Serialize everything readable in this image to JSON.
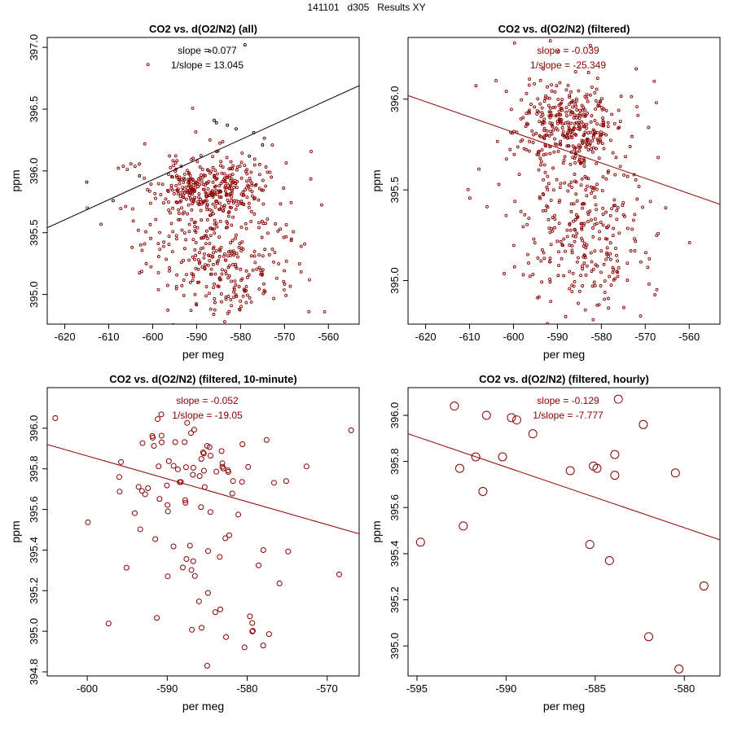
{
  "page_title": "141101   d305   Results XY",
  "colors": {
    "data": "#8b0000",
    "outlier": "#000000",
    "frame": "#000000",
    "text": "#000000"
  },
  "chart_data": [
    {
      "type": "scatter",
      "title": "CO2 vs. d(O2/N2) (all)",
      "xlabel": "per meg",
      "ylabel": "ppm",
      "xlim": [
        -624,
        -553
      ],
      "ylim": [
        394.76,
        397.08
      ],
      "xticks": [
        -620,
        -610,
        -600,
        -590,
        -580,
        -570,
        -560
      ],
      "yticks": [
        395.0,
        395.5,
        396.0,
        396.5,
        397.0
      ],
      "ytick_labels": [
        "395.0",
        "395.5",
        "396.0",
        "396.5",
        "397.0"
      ],
      "slope_label": "slope = 0.077",
      "inv_slope_label": "1/slope = 13.045",
      "fit_line": {
        "x": [
          -624,
          -553
        ],
        "y": [
          395.54,
          396.69
        ]
      },
      "point_radius": 1.5,
      "clusters": [
        {
          "cx": -587,
          "cy": 395.85,
          "sx": 6,
          "sy": 0.12,
          "n": 330,
          "seed": 11
        },
        {
          "cx": -585,
          "cy": 395.35,
          "sx": 8,
          "sy": 0.15,
          "n": 180,
          "seed": 12
        },
        {
          "cx": -585,
          "cy": 395.02,
          "sx": 8,
          "sy": 0.12,
          "n": 80,
          "seed": 13
        },
        {
          "cx": -588,
          "cy": 395.7,
          "sx": 11,
          "sy": 0.35,
          "n": 80,
          "seed": 14
        }
      ],
      "outliers": [
        {
          "x": -579,
          "y": 397.02
        },
        {
          "x": -587,
          "y": 396.97
        },
        {
          "x": -586,
          "y": 396.41
        },
        {
          "x": -585.5,
          "y": 396.39
        },
        {
          "x": -583,
          "y": 396.37
        },
        {
          "x": -581,
          "y": 396.34
        },
        {
          "x": -577,
          "y": 396.31
        },
        {
          "x": -575,
          "y": 396.21
        },
        {
          "x": -615,
          "y": 395.91
        },
        {
          "x": -609,
          "y": 395.76
        },
        {
          "x": -603,
          "y": 395.96
        },
        {
          "x": -578,
          "y": 396.12
        }
      ]
    },
    {
      "type": "scatter",
      "title": "CO2 vs. d(O2/N2) (filtered)",
      "xlabel": "per meg",
      "ylabel": "ppm",
      "xlim": [
        -624,
        -553
      ],
      "ylim": [
        394.76,
        396.34
      ],
      "xticks": [
        -620,
        -610,
        -600,
        -590,
        -580,
        -570,
        -560
      ],
      "yticks": [
        395.0,
        395.5,
        396.0
      ],
      "ytick_labels": [
        "395.0",
        "395.5",
        "396.0"
      ],
      "slope_label": "slope = -0.039",
      "inv_slope_label": "1/slope = -25.349",
      "fit_line": {
        "x": [
          -624,
          -553
        ],
        "y": [
          396.02,
          395.42
        ]
      },
      "point_radius": 1.5,
      "clusters": [
        {
          "cx": -587,
          "cy": 395.85,
          "sx": 6,
          "sy": 0.12,
          "n": 330,
          "seed": 21
        },
        {
          "cx": -585,
          "cy": 395.35,
          "sx": 8,
          "sy": 0.15,
          "n": 180,
          "seed": 22
        },
        {
          "cx": -585,
          "cy": 395.02,
          "sx": 8,
          "sy": 0.12,
          "n": 80,
          "seed": 23
        },
        {
          "cx": -588,
          "cy": 395.7,
          "sx": 11,
          "sy": 0.35,
          "n": 80,
          "seed": 24
        }
      ],
      "outliers": []
    },
    {
      "type": "scatter",
      "title": "CO2 vs. d(O2/N2) (filtered, 10-minute)",
      "xlabel": "per meg",
      "ylabel": "ppm",
      "xlim": [
        -605,
        -566
      ],
      "ylim": [
        394.78,
        396.2
      ],
      "xticks": [
        -600,
        -590,
        -580,
        -570
      ],
      "yticks": [
        394.8,
        395.0,
        395.2,
        395.4,
        395.6,
        395.8,
        396.0
      ],
      "ytick_labels": [
        "394.8",
        "395.0",
        "395.2",
        "395.4",
        "395.6",
        "395.8",
        "396.0"
      ],
      "slope_label": "slope = -0.052",
      "inv_slope_label": "1/slope = -19.05",
      "fit_line": {
        "x": [
          -605,
          -566
        ],
        "y": [
          395.92,
          395.48
        ]
      },
      "point_radius": 3,
      "clusters": [
        {
          "cx": -587,
          "cy": 395.82,
          "sx": 5,
          "sy": 0.12,
          "n": 55,
          "seed": 31
        },
        {
          "cx": -585,
          "cy": 395.35,
          "sx": 6,
          "sy": 0.1,
          "n": 20,
          "seed": 32
        },
        {
          "cx": -583,
          "cy": 395.03,
          "sx": 5,
          "sy": 0.08,
          "n": 10,
          "seed": 33
        },
        {
          "cx": -588,
          "cy": 395.6,
          "sx": 9,
          "sy": 0.35,
          "n": 15,
          "seed": 34
        }
      ],
      "outliers": [
        {
          "x": -604,
          "y": 396.05
        },
        {
          "x": -585,
          "y": 394.83
        },
        {
          "x": -578,
          "y": 394.93
        },
        {
          "x": -567,
          "y": 395.99
        },
        {
          "x": -568.5,
          "y": 395.28
        }
      ]
    },
    {
      "type": "scatter",
      "title": "CO2 vs. d(O2/N2) (filtered, hourly)",
      "xlabel": "per meg",
      "ylabel": "ppm",
      "xlim": [
        -595.5,
        -578
      ],
      "ylim": [
        394.87,
        396.12
      ],
      "xticks": [
        -595,
        -590,
        -585,
        -580
      ],
      "yticks": [
        395.0,
        395.2,
        395.4,
        395.6,
        395.8,
        396.0
      ],
      "ytick_labels": [
        "395.0",
        "395.2",
        "395.4",
        "395.6",
        "395.8",
        "396.0"
      ],
      "slope_label": "slope = -0.129",
      "inv_slope_label": "1/slope = -7.777",
      "fit_line": {
        "x": [
          -595.5,
          -578
        ],
        "y": [
          395.92,
          395.46
        ]
      },
      "point_radius": 5,
      "x": [
        -594.8,
        -592.9,
        -592.6,
        -592.4,
        -591.7,
        -591.3,
        -591.1,
        -589.7,
        -589.4,
        -588.5,
        -590.2,
        -586.4,
        -585.3,
        -585.1,
        -584.9,
        -584.2,
        -583.9,
        -583.9,
        -583.7,
        -582.3,
        -582.0,
        -580.5,
        -580.3,
        -578.9
      ],
      "y": [
        395.45,
        396.04,
        395.77,
        395.52,
        395.82,
        395.67,
        396.0,
        395.99,
        395.98,
        395.92,
        395.82,
        395.76,
        395.44,
        395.78,
        395.77,
        395.37,
        395.74,
        395.83,
        396.07,
        395.96,
        395.04,
        395.75,
        394.9,
        395.26
      ]
    }
  ]
}
